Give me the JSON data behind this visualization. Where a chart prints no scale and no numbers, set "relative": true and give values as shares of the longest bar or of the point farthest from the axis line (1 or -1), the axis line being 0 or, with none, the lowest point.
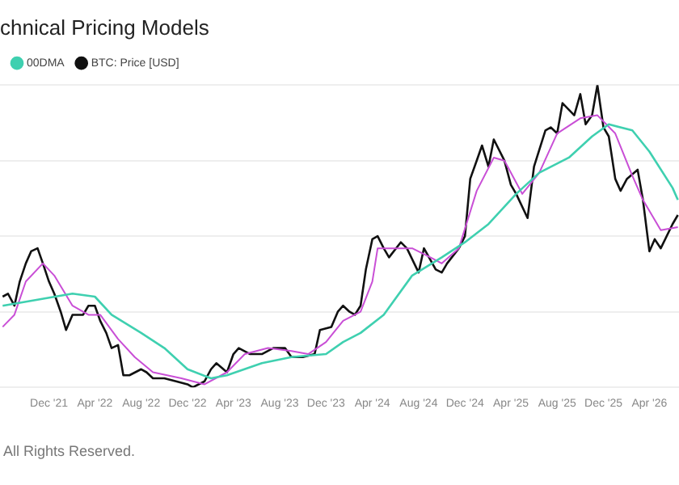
{
  "chart_data": {
    "type": "line",
    "title": "chnical Pricing Models",
    "relative": true,
    "legend": "top left",
    "grid": "y",
    "marker": "none",
    "line_style": "solid",
    "annotations": [
      "All Rights Reserved."
    ],
    "xlim": [
      "2021-07-25",
      "2026-06-18"
    ],
    "xticks": [
      {
        "value": "2021-12-01",
        "label": "Dec '21"
      },
      {
        "value": "2022-04-01",
        "label": "Apr '22"
      },
      {
        "value": "2022-08-01",
        "label": "Aug '22"
      },
      {
        "value": "2022-12-01",
        "label": "Dec '22"
      },
      {
        "value": "2023-04-01",
        "label": "Apr '23"
      },
      {
        "value": "2023-08-01",
        "label": "Aug '23"
      },
      {
        "value": "2023-12-01",
        "label": "Dec '23"
      },
      {
        "value": "2024-04-01",
        "label": "Apr '24"
      },
      {
        "value": "2024-08-01",
        "label": "Aug '24"
      },
      {
        "value": "2024-12-01",
        "label": "Dec '24"
      },
      {
        "value": "2025-04-01",
        "label": "Apr '25"
      },
      {
        "value": "2025-08-01",
        "label": "Aug '25"
      },
      {
        "value": "2025-12-01",
        "label": "Dec '25"
      },
      {
        "value": "2026-04-01",
        "label": "Apr '26"
      }
    ],
    "series": [
      {
        "name": "00DMA",
        "color": "#3fd0b0",
        "x": [
          "2021-08-01",
          "2021-11-01",
          "2022-02-01",
          "2022-04-01",
          "2022-05-15",
          "2022-08-01",
          "2022-10-01",
          "2022-12-01",
          "2023-02-01",
          "2023-03-15",
          "2023-06-15",
          "2023-09-01",
          "2023-12-01",
          "2024-01-15",
          "2024-03-01",
          "2024-05-01",
          "2024-07-15",
          "2024-10-01",
          "2024-12-01",
          "2025-02-01",
          "2025-04-15",
          "2025-06-15",
          "2025-09-01",
          "2025-11-01",
          "2025-12-15",
          "2026-02-15",
          "2026-04-01",
          "2026-06-01",
          "2026-06-15"
        ],
        "values": [
          0.27,
          0.29,
          0.31,
          0.3,
          0.24,
          0.18,
          0.13,
          0.06,
          0.03,
          0.04,
          0.08,
          0.1,
          0.11,
          0.15,
          0.18,
          0.24,
          0.37,
          0.43,
          0.48,
          0.54,
          0.64,
          0.71,
          0.76,
          0.83,
          0.87,
          0.85,
          0.78,
          0.66,
          0.62
        ]
      },
      {
        "color": "#c94fd6",
        "x": [
          "2021-08-01",
          "2021-09-01",
          "2021-10-01",
          "2021-11-15",
          "2021-12-15",
          "2022-02-01",
          "2022-03-15",
          "2022-04-15",
          "2022-06-01",
          "2022-07-15",
          "2022-09-01",
          "2022-11-15",
          "2023-01-15",
          "2023-03-15",
          "2023-05-01",
          "2023-07-01",
          "2023-09-01",
          "2023-10-15",
          "2023-12-01",
          "2024-01-15",
          "2024-03-01",
          "2024-04-01",
          "2024-04-15",
          "2024-06-01",
          "2024-07-15",
          "2024-09-01",
          "2024-10-01",
          "2024-11-15",
          "2025-01-01",
          "2025-02-15",
          "2025-03-15",
          "2025-05-01",
          "2025-06-15",
          "2025-08-01",
          "2025-10-01",
          "2025-11-15",
          "2026-01-01",
          "2026-02-15",
          "2026-03-15",
          "2026-05-01",
          "2026-06-15"
        ],
        "values": [
          0.2,
          0.24,
          0.35,
          0.41,
          0.37,
          0.27,
          0.24,
          0.24,
          0.16,
          0.1,
          0.05,
          0.03,
          0.01,
          0.05,
          0.11,
          0.13,
          0.12,
          0.11,
          0.15,
          0.22,
          0.25,
          0.35,
          0.46,
          0.46,
          0.46,
          0.43,
          0.41,
          0.46,
          0.65,
          0.76,
          0.75,
          0.64,
          0.71,
          0.84,
          0.89,
          0.9,
          0.84,
          0.7,
          0.62,
          0.52,
          0.53
        ]
      },
      {
        "name": "BTC: Price [USD]",
        "color": "#111111",
        "x": [
          "2021-08-01",
          "2021-08-15",
          "2021-09-01",
          "2021-09-15",
          "2021-10-01",
          "2021-10-15",
          "2021-11-01",
          "2021-11-15",
          "2021-12-01",
          "2021-12-15",
          "2022-01-01",
          "2022-01-15",
          "2022-02-01",
          "2022-03-01",
          "2022-03-15",
          "2022-04-01",
          "2022-04-15",
          "2022-05-01",
          "2022-05-15",
          "2022-06-01",
          "2022-06-15",
          "2022-07-01",
          "2022-08-01",
          "2022-08-15",
          "2022-09-01",
          "2022-10-01",
          "2022-11-01",
          "2022-12-01",
          "2022-12-15",
          "2023-01-15",
          "2023-02-01",
          "2023-02-15",
          "2023-03-15",
          "2023-04-01",
          "2023-04-15",
          "2023-05-15",
          "2023-06-15",
          "2023-07-15",
          "2023-08-15",
          "2023-09-01",
          "2023-10-01",
          "2023-11-01",
          "2023-11-15",
          "2023-12-15",
          "2024-01-01",
          "2024-01-15",
          "2024-02-01",
          "2024-02-15",
          "2024-03-01",
          "2024-03-15",
          "2024-04-01",
          "2024-04-15",
          "2024-05-01",
          "2024-05-15",
          "2024-06-15",
          "2024-07-01",
          "2024-08-01",
          "2024-08-15",
          "2024-09-15",
          "2024-10-01",
          "2024-10-15",
          "2024-11-15",
          "2024-12-01",
          "2024-12-15",
          "2025-01-01",
          "2025-01-15",
          "2025-02-01",
          "2025-02-15",
          "2025-03-15",
          "2025-04-01",
          "2025-04-15",
          "2025-05-15",
          "2025-06-01",
          "2025-07-01",
          "2025-07-15",
          "2025-08-01",
          "2025-08-15",
          "2025-09-15",
          "2025-10-01",
          "2025-10-15",
          "2025-11-01",
          "2025-11-15",
          "2025-12-01",
          "2025-12-15",
          "2026-01-01",
          "2026-01-15",
          "2026-02-01",
          "2026-03-01",
          "2026-03-15",
          "2026-04-01",
          "2026-04-15",
          "2026-05-01",
          "2026-06-01",
          "2026-06-15"
        ],
        "values": [
          0.3,
          0.31,
          0.27,
          0.35,
          0.41,
          0.45,
          0.46,
          0.41,
          0.35,
          0.31,
          0.25,
          0.19,
          0.24,
          0.24,
          0.27,
          0.27,
          0.22,
          0.18,
          0.13,
          0.14,
          0.04,
          0.04,
          0.06,
          0.05,
          0.03,
          0.03,
          0.02,
          0.01,
          0,
          0.02,
          0.06,
          0.08,
          0.05,
          0.11,
          0.13,
          0.11,
          0.11,
          0.13,
          0.13,
          0.1,
          0.1,
          0.11,
          0.19,
          0.2,
          0.25,
          0.27,
          0.25,
          0.24,
          0.27,
          0.39,
          0.49,
          0.5,
          0.46,
          0.43,
          0.48,
          0.46,
          0.38,
          0.46,
          0.39,
          0.38,
          0.41,
          0.46,
          0.5,
          0.69,
          0.75,
          0.8,
          0.73,
          0.82,
          0.75,
          0.67,
          0.64,
          0.56,
          0.73,
          0.85,
          0.86,
          0.84,
          0.94,
          0.9,
          0.97,
          0.87,
          0.9,
          1,
          0.86,
          0.83,
          0.69,
          0.65,
          0.69,
          0.72,
          0.62,
          0.45,
          0.49,
          0.46,
          0.54,
          0.57
        ]
      }
    ]
  }
}
